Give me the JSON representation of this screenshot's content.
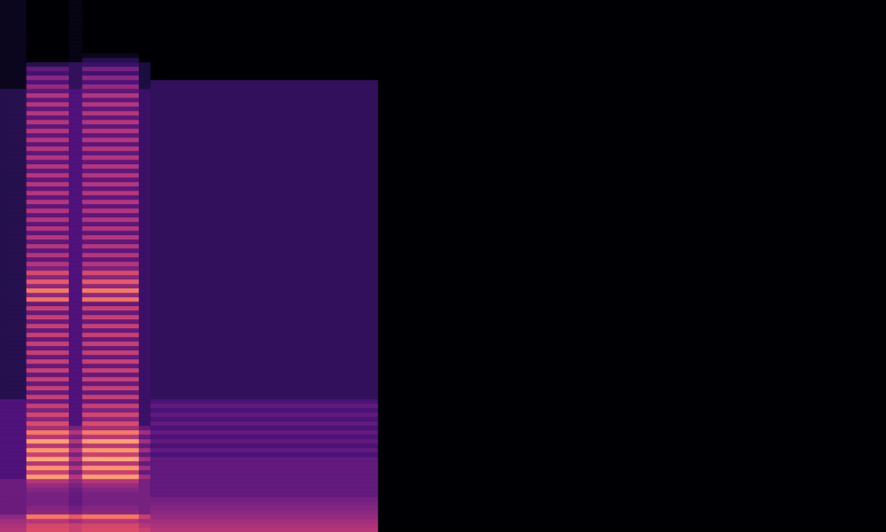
{
  "chart_data": {
    "type": "heatmap",
    "color": "magma",
    "grid": false,
    "tick_labels": false,
    "xlim": [
      0,
      100
    ],
    "ylim": [
      0,
      120
    ],
    "x_edges": [
      0,
      3,
      7.8,
      9.3,
      15.7,
      17,
      42.7,
      100
    ],
    "y_edges": [
      0,
      1,
      2,
      3,
      4,
      5,
      6,
      7,
      8,
      9,
      10,
      11,
      12,
      13,
      14,
      15,
      16,
      17,
      18,
      19,
      20,
      21,
      22,
      23,
      24,
      25,
      26,
      27,
      28,
      29,
      30,
      31,
      32,
      33,
      34,
      35,
      36,
      37,
      38,
      39,
      40,
      41,
      42,
      43,
      44,
      45,
      46,
      47,
      48,
      49,
      50,
      51,
      52,
      53,
      54,
      55,
      56,
      57,
      58,
      59,
      60,
      61,
      62,
      63,
      64,
      65,
      66,
      67,
      68,
      69,
      70,
      71,
      72,
      73,
      74,
      75,
      76,
      77,
      78,
      79,
      80,
      81,
      82,
      83,
      84,
      85,
      86,
      87,
      88,
      89,
      90,
      91,
      92,
      93,
      94,
      95,
      96,
      97,
      98,
      99,
      100,
      101,
      102,
      103,
      104,
      105,
      106,
      107,
      108,
      109,
      110,
      111,
      112,
      113,
      114,
      115,
      116,
      117,
      118,
      119,
      120
    ],
    "value_range": [
      0,
      1
    ],
    "cells": [
      [
        0.5,
        0.48,
        0.45,
        0.4,
        0.32,
        0.32,
        0.32,
        0.32,
        0.32,
        0.32,
        0.32,
        0.32,
        0.25,
        0.25,
        0.25,
        0.25,
        0.25,
        0.25,
        0.25,
        0.25,
        0.25,
        0.25,
        0.25,
        0.25,
        0.25,
        0.25,
        0.25,
        0.25,
        0.25,
        0.25,
        0.15,
        0.15,
        0.15,
        0.15,
        0.15,
        0.15,
        0.15,
        0.15,
        0.15,
        0.15,
        0.15,
        0.15,
        0.15,
        0.15,
        0.15,
        0.15,
        0.15,
        0.15,
        0.15,
        0.15,
        0.15,
        0.15,
        0.15,
        0.15,
        0.15,
        0.15,
        0.15,
        0.15,
        0.15,
        0.15,
        0.15,
        0.15,
        0.15,
        0.15,
        0.15,
        0.15,
        0.15,
        0.15,
        0.15,
        0.15,
        0.15,
        0.15,
        0.15,
        0.15,
        0.15,
        0.15,
        0.15,
        0.15,
        0.15,
        0.15,
        0.15,
        0.15,
        0.15,
        0.15,
        0.15,
        0.15,
        0.15,
        0.15,
        0.15,
        0.15,
        0.15,
        0.15,
        0.15,
        0.15,
        0.15,
        0.15,
        0.15,
        0.15,
        0.15,
        0.15,
        0.05,
        0.05,
        0.05,
        0.05,
        0.05,
        0.05,
        0.05,
        0.05,
        0.05,
        0.05,
        0.05,
        0.05,
        0.05,
        0.05,
        0.05,
        0.05,
        0.05,
        0.05,
        0.05,
        0.05
      ],
      [
        0.6,
        0.58,
        0.5,
        0.72,
        0.4,
        0.38,
        0.35,
        0.35,
        0.35,
        0.38,
        0.42,
        0.5,
        0.8,
        0.55,
        0.78,
        0.5,
        0.82,
        0.55,
        0.78,
        0.5,
        0.8,
        0.5,
        0.72,
        0.45,
        0.6,
        0.38,
        0.58,
        0.36,
        0.55,
        0.3,
        0.55,
        0.3,
        0.55,
        0.3,
        0.55,
        0.3,
        0.55,
        0.3,
        0.55,
        0.3,
        0.55,
        0.3,
        0.55,
        0.3,
        0.55,
        0.3,
        0.55,
        0.3,
        0.55,
        0.3,
        0.55,
        0.3,
        0.7,
        0.4,
        0.72,
        0.4,
        0.65,
        0.38,
        0.6,
        0.35,
        0.5,
        0.28,
        0.5,
        0.28,
        0.5,
        0.28,
        0.5,
        0.28,
        0.5,
        0.28,
        0.5,
        0.28,
        0.5,
        0.28,
        0.5,
        0.28,
        0.5,
        0.28,
        0.5,
        0.28,
        0.5,
        0.28,
        0.5,
        0.28,
        0.5,
        0.28,
        0.5,
        0.28,
        0.5,
        0.28,
        0.5,
        0.28,
        0.5,
        0.28,
        0.5,
        0.28,
        0.5,
        0.28,
        0.5,
        0.28,
        0.42,
        0.25,
        0.4,
        0.22,
        0.3,
        0.15,
        0,
        0,
        0,
        0,
        0,
        0,
        0,
        0,
        0,
        0,
        0,
        0,
        0,
        0
      ],
      [
        0.55,
        0.55,
        0.45,
        0.65,
        0.35,
        0.33,
        0.3,
        0.3,
        0.3,
        0.32,
        0.35,
        0.4,
        0.5,
        0.35,
        0.5,
        0.35,
        0.5,
        0.35,
        0.5,
        0.35,
        0.5,
        0.35,
        0.5,
        0.35,
        0.25,
        0.25,
        0.25,
        0.25,
        0.25,
        0.25,
        0.25,
        0.25,
        0.25,
        0.25,
        0.25,
        0.25,
        0.25,
        0.25,
        0.25,
        0.25,
        0.25,
        0.25,
        0.25,
        0.25,
        0.25,
        0.25,
        0.25,
        0.25,
        0.25,
        0.25,
        0.25,
        0.25,
        0.25,
        0.25,
        0.25,
        0.25,
        0.25,
        0.25,
        0.25,
        0.25,
        0.25,
        0.25,
        0.25,
        0.25,
        0.25,
        0.25,
        0.25,
        0.25,
        0.25,
        0.25,
        0.25,
        0.25,
        0.25,
        0.25,
        0.25,
        0.25,
        0.25,
        0.25,
        0.25,
        0.25,
        0.25,
        0.25,
        0.25,
        0.25,
        0.25,
        0.25,
        0.25,
        0.25,
        0.25,
        0.25,
        0.25,
        0.25,
        0.25,
        0.25,
        0.25,
        0.25,
        0.25,
        0.25,
        0.25,
        0.25,
        0.18,
        0.18,
        0.18,
        0.18,
        0.18,
        0.18,
        0.03,
        0.03,
        0.03,
        0.03,
        0.03,
        0.03,
        0.03,
        0.03,
        0.03,
        0.03,
        0.03,
        0.03,
        0.03,
        0.03
      ],
      [
        0.6,
        0.58,
        0.5,
        0.72,
        0.4,
        0.38,
        0.35,
        0.35,
        0.35,
        0.38,
        0.42,
        0.5,
        0.8,
        0.55,
        0.78,
        0.5,
        0.82,
        0.55,
        0.78,
        0.5,
        0.8,
        0.5,
        0.72,
        0.45,
        0.6,
        0.38,
        0.58,
        0.36,
        0.55,
        0.3,
        0.55,
        0.3,
        0.55,
        0.3,
        0.55,
        0.3,
        0.55,
        0.3,
        0.55,
        0.3,
        0.55,
        0.3,
        0.55,
        0.3,
        0.55,
        0.3,
        0.55,
        0.3,
        0.55,
        0.3,
        0.55,
        0.3,
        0.7,
        0.4,
        0.72,
        0.4,
        0.65,
        0.38,
        0.6,
        0.35,
        0.5,
        0.28,
        0.5,
        0.28,
        0.5,
        0.28,
        0.5,
        0.28,
        0.5,
        0.28,
        0.5,
        0.28,
        0.5,
        0.28,
        0.5,
        0.28,
        0.5,
        0.28,
        0.5,
        0.28,
        0.5,
        0.28,
        0.5,
        0.28,
        0.5,
        0.28,
        0.5,
        0.28,
        0.5,
        0.28,
        0.5,
        0.28,
        0.5,
        0.28,
        0.5,
        0.28,
        0.5,
        0.28,
        0.5,
        0.28,
        0.42,
        0.25,
        0.4,
        0.22,
        0.35,
        0.2,
        0.15,
        0.05,
        0,
        0,
        0,
        0,
        0,
        0,
        0,
        0,
        0,
        0,
        0,
        0
      ],
      [
        0.55,
        0.5,
        0.45,
        0.55,
        0.35,
        0.35,
        0.35,
        0.35,
        0.35,
        0.35,
        0.35,
        0.35,
        0.45,
        0.3,
        0.45,
        0.3,
        0.45,
        0.3,
        0.45,
        0.3,
        0.45,
        0.3,
        0.45,
        0.3,
        0.2,
        0.2,
        0.2,
        0.2,
        0.2,
        0.2,
        0.2,
        0.2,
        0.2,
        0.2,
        0.2,
        0.2,
        0.2,
        0.2,
        0.2,
        0.2,
        0.2,
        0.2,
        0.2,
        0.2,
        0.2,
        0.2,
        0.2,
        0.2,
        0.2,
        0.2,
        0.2,
        0.2,
        0.2,
        0.2,
        0.2,
        0.2,
        0.2,
        0.2,
        0.2,
        0.2,
        0.2,
        0.2,
        0.2,
        0.2,
        0.2,
        0.2,
        0.2,
        0.2,
        0.2,
        0.2,
        0.2,
        0.2,
        0.2,
        0.2,
        0.2,
        0.2,
        0.2,
        0.2,
        0.2,
        0.2,
        0.2,
        0.2,
        0.2,
        0.2,
        0.2,
        0.2,
        0.2,
        0.2,
        0.2,
        0.2,
        0.2,
        0.2,
        0.2,
        0.2,
        0.2,
        0.2,
        0.2,
        0.2,
        0.2,
        0.2,
        0.12,
        0.12,
        0.12,
        0.12,
        0.12,
        0.12,
        0,
        0,
        0,
        0,
        0,
        0,
        0,
        0,
        0,
        0,
        0,
        0,
        0,
        0
      ],
      [
        0.5,
        0.48,
        0.45,
        0.42,
        0.4,
        0.38,
        0.36,
        0.34,
        0.3,
        0.3,
        0.3,
        0.3,
        0.3,
        0.3,
        0.3,
        0.3,
        0.3,
        0.24,
        0.3,
        0.24,
        0.3,
        0.24,
        0.3,
        0.24,
        0.3,
        0.24,
        0.3,
        0.24,
        0.3,
        0.24,
        0.18,
        0.18,
        0.18,
        0.18,
        0.18,
        0.18,
        0.18,
        0.18,
        0.18,
        0.18,
        0.18,
        0.18,
        0.18,
        0.18,
        0.18,
        0.18,
        0.18,
        0.18,
        0.18,
        0.18,
        0.18,
        0.18,
        0.18,
        0.18,
        0.18,
        0.18,
        0.18,
        0.18,
        0.18,
        0.18,
        0.18,
        0.18,
        0.18,
        0.18,
        0.18,
        0.18,
        0.18,
        0.18,
        0.18,
        0.18,
        0.18,
        0.18,
        0.18,
        0.18,
        0.18,
        0.18,
        0.18,
        0.18,
        0.18,
        0.18,
        0.18,
        0.18,
        0.18,
        0.18,
        0.18,
        0.18,
        0.18,
        0.18,
        0.18,
        0.18,
        0.18,
        0.18,
        0.18,
        0.18,
        0.18,
        0.18,
        0.18,
        0.18,
        0.18,
        0.18,
        0.18,
        0.18,
        0,
        0,
        0,
        0,
        0,
        0,
        0,
        0,
        0,
        0,
        0,
        0,
        0,
        0,
        0,
        0,
        0,
        0
      ],
      [
        0,
        0,
        0,
        0,
        0,
        0,
        0,
        0,
        0,
        0,
        0,
        0,
        0,
        0,
        0,
        0,
        0,
        0,
        0,
        0,
        0,
        0,
        0,
        0,
        0,
        0,
        0,
        0,
        0,
        0,
        0,
        0,
        0,
        0,
        0,
        0,
        0,
        0,
        0,
        0,
        0,
        0,
        0,
        0,
        0,
        0,
        0,
        0,
        0,
        0,
        0,
        0,
        0,
        0,
        0,
        0,
        0,
        0,
        0,
        0,
        0,
        0,
        0,
        0,
        0,
        0,
        0,
        0,
        0,
        0,
        0,
        0,
        0,
        0,
        0,
        0,
        0,
        0,
        0,
        0,
        0,
        0,
        0,
        0,
        0,
        0,
        0,
        0,
        0,
        0,
        0,
        0,
        0,
        0,
        0,
        0,
        0,
        0,
        0,
        0,
        0,
        0,
        0,
        0,
        0,
        0,
        0,
        0,
        0,
        0,
        0,
        0,
        0,
        0,
        0,
        0,
        0,
        0,
        0,
        0
      ]
    ]
  }
}
